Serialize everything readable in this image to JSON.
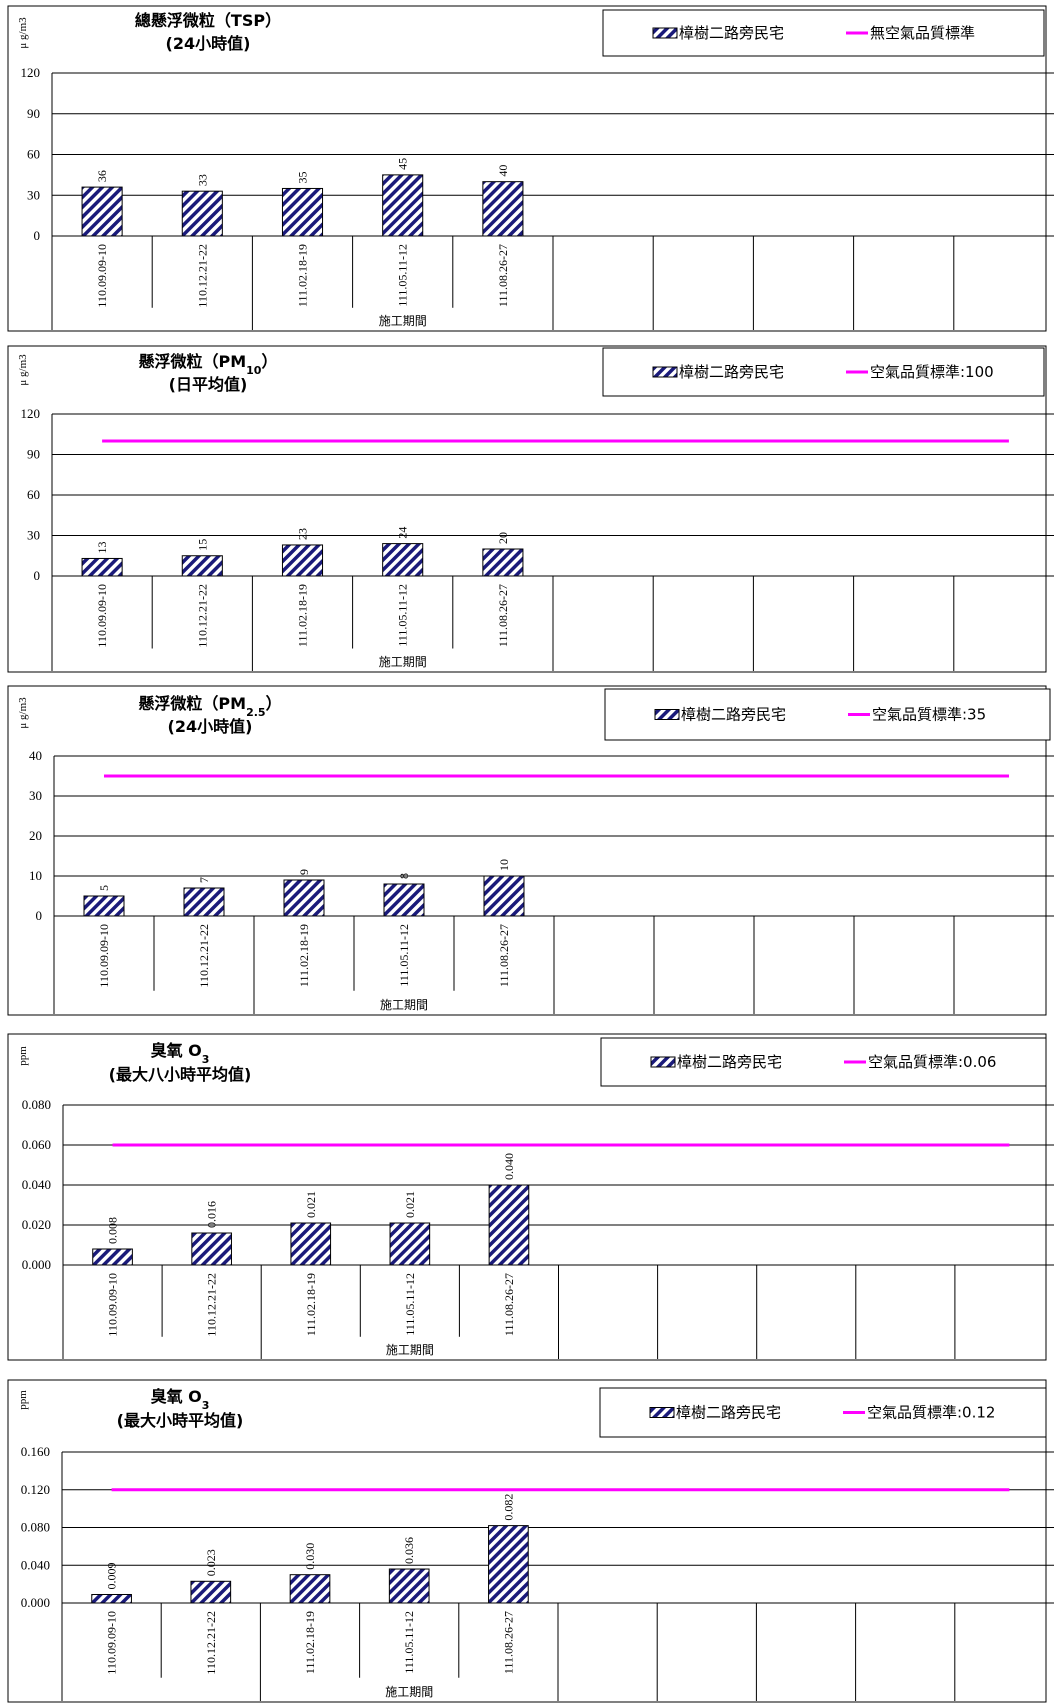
{
  "colors": {
    "bar_stroke": "#000000",
    "bar_stripe": "#1a1a7a",
    "standard_line": "#ff00ff",
    "grid": "#000000"
  },
  "chart_data": [
    {
      "type": "bar",
      "title": "總懸浮微粒（TSP）",
      "subtitle": "(24小時值)",
      "ylabel": "μ g/m3",
      "xlabel": "施工期間",
      "ylim": [
        0,
        120
      ],
      "yticks": [
        "0",
        "30",
        "60",
        "90",
        "120"
      ],
      "categories": [
        "110.09.09-10",
        "110.12.21-22",
        "111.02.18-19",
        "111.05.11-12",
        "111.08.26-27"
      ],
      "series": [
        {
          "name": "樟樹二路旁民宅",
          "values": [
            36,
            33,
            35,
            45,
            40
          ]
        }
      ],
      "data_labels": [
        "36",
        "33",
        "35",
        "45",
        "40"
      ],
      "standard": {
        "name": "無空氣品質標準",
        "value": null
      },
      "legend_position": "top-right"
    },
    {
      "type": "bar",
      "title": "懸浮微粒（PM10）",
      "subtitle": "(日平均值)",
      "ylabel": "μ g/m3",
      "xlabel": "施工期間",
      "ylim": [
        0,
        120
      ],
      "yticks": [
        "0",
        "30",
        "60",
        "90",
        "120"
      ],
      "categories": [
        "110.09.09-10",
        "110.12.21-22",
        "111.02.18-19",
        "111.05.11-12",
        "111.08.26-27"
      ],
      "series": [
        {
          "name": "樟樹二路旁民宅",
          "values": [
            13,
            15,
            23,
            24,
            20
          ]
        }
      ],
      "data_labels": [
        "13",
        "15",
        "23",
        "24",
        "20"
      ],
      "standard": {
        "name": "空氣品質標準:100",
        "value": 100
      },
      "legend_position": "top-right"
    },
    {
      "type": "bar",
      "title": "懸浮微粒（PM2.5）",
      "subtitle": "(24小時值)",
      "ylabel": "μ g/m3",
      "xlabel": "施工期間",
      "ylim": [
        0,
        40
      ],
      "yticks": [
        "0",
        "10",
        "20",
        "30",
        "40"
      ],
      "categories": [
        "110.09.09-10",
        "110.12.21-22",
        "111.02.18-19",
        "111.05.11-12",
        "111.08.26-27"
      ],
      "series": [
        {
          "name": "樟樹二路旁民宅",
          "values": [
            5,
            7,
            9,
            8,
            10
          ]
        }
      ],
      "data_labels": [
        "5",
        "7",
        "9",
        "8",
        "10"
      ],
      "standard": {
        "name": "空氣品質標準:35",
        "value": 35
      },
      "legend_position": "top-right"
    },
    {
      "type": "bar",
      "title": "臭氧 O3",
      "subtitle": "(最大八小時平均值)",
      "ylabel": "ppm",
      "xlabel": "施工期間",
      "ylim": [
        0,
        0.08
      ],
      "yticks": [
        "0.000",
        "0.020",
        "0.040",
        "0.060",
        "0.080"
      ],
      "categories": [
        "110.09.09-10",
        "110.12.21-22",
        "111.02.18-19",
        "111.05.11-12",
        "111.08.26-27"
      ],
      "series": [
        {
          "name": "樟樹二路旁民宅",
          "values": [
            0.008,
            0.016,
            0.021,
            0.021,
            0.04
          ]
        }
      ],
      "data_labels": [
        "0.008",
        "0.016",
        "0.021",
        "0.021",
        "0.040"
      ],
      "standard": {
        "name": "空氣品質標準:0.06",
        "value": 0.06
      },
      "legend_position": "top-right"
    },
    {
      "type": "bar",
      "title": "臭氧 O3",
      "subtitle": "(最大小時平均值)",
      "ylabel": "ppm",
      "xlabel": "施工期間",
      "ylim": [
        0,
        0.16
      ],
      "yticks": [
        "0.000",
        "0.040",
        "0.080",
        "0.120",
        "0.160"
      ],
      "categories": [
        "110.09.09-10",
        "110.12.21-22",
        "111.02.18-19",
        "111.05.11-12",
        "111.08.26-27"
      ],
      "series": [
        {
          "name": "樟樹二路旁民宅",
          "values": [
            0.009,
            0.023,
            0.03,
            0.036,
            0.082
          ]
        }
      ],
      "data_labels": [
        "0.009",
        "0.023",
        "0.030",
        "0.036",
        "0.082"
      ],
      "standard": {
        "name": "空氣品質標準:0.12",
        "value": 0.12
      },
      "legend_position": "top-right"
    }
  ]
}
